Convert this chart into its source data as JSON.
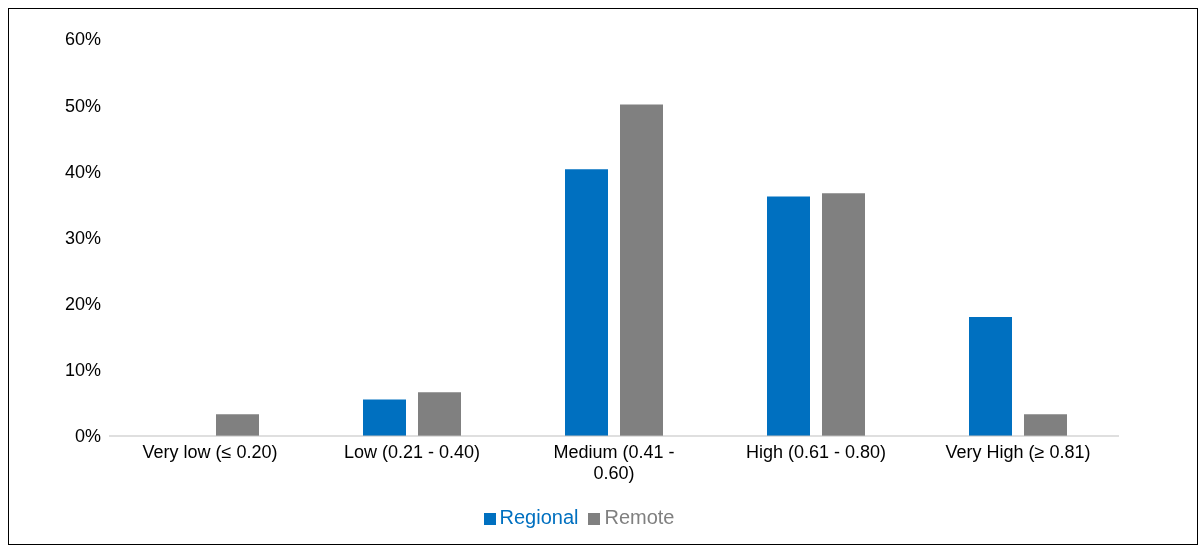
{
  "chart_data": {
    "type": "bar",
    "categories": [
      "Very low (≤ 0.20)",
      "Low (0.21 - 0.40)",
      "Medium (0.41 - 0.60)",
      "High (0.61 - 0.80)",
      "Very High (≥ 0.81)"
    ],
    "series": [
      {
        "name": "Regional",
        "color": "#0070c0",
        "values": [
          0,
          5.5,
          40.3,
          36.2,
          18.0
        ]
      },
      {
        "name": "Remote",
        "color": "#808080",
        "values": [
          3.3,
          6.6,
          50.1,
          36.7,
          3.3
        ]
      }
    ],
    "ylim": [
      0,
      60
    ],
    "yticks": [
      {
        "value": 0,
        "label": "0%"
      },
      {
        "value": 10,
        "label": "10%"
      },
      {
        "value": 20,
        "label": "20%"
      },
      {
        "value": 30,
        "label": "30%"
      },
      {
        "value": 40,
        "label": "40%"
      },
      {
        "value": 50,
        "label": "50%"
      },
      {
        "value": 60,
        "label": "60%"
      }
    ],
    "grid": false,
    "legend": "bottom"
  }
}
